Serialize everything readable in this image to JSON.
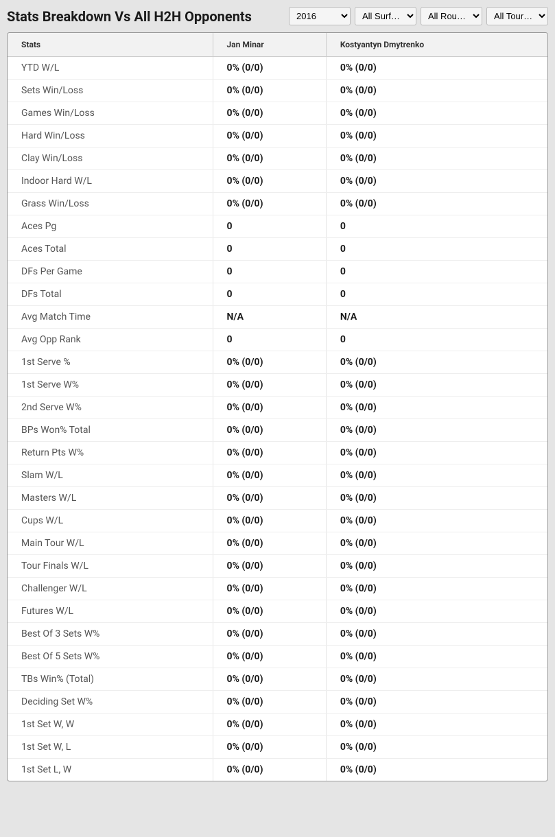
{
  "title": "Stats Breakdown Vs All H2H Opponents",
  "filters": {
    "year": {
      "selected": "2016",
      "options": [
        "2016"
      ]
    },
    "surface": {
      "selected": "All Surf…",
      "options": [
        "All Surf…"
      ]
    },
    "round": {
      "selected": "All Rou…",
      "options": [
        "All Rou…"
      ]
    },
    "tournament": {
      "selected": "All Tour…",
      "options": [
        "All Tour…"
      ]
    }
  },
  "table": {
    "columns": [
      "Stats",
      "Jan Minar",
      "Kostyantyn Dmytrenko"
    ],
    "rows": [
      [
        "YTD W/L",
        "0% (0/0)",
        "0% (0/0)"
      ],
      [
        "Sets Win/Loss",
        "0% (0/0)",
        "0% (0/0)"
      ],
      [
        "Games Win/Loss",
        "0% (0/0)",
        "0% (0/0)"
      ],
      [
        "Hard Win/Loss",
        "0% (0/0)",
        "0% (0/0)"
      ],
      [
        "Clay Win/Loss",
        "0% (0/0)",
        "0% (0/0)"
      ],
      [
        "Indoor Hard W/L",
        "0% (0/0)",
        "0% (0/0)"
      ],
      [
        "Grass Win/Loss",
        "0% (0/0)",
        "0% (0/0)"
      ],
      [
        "Aces Pg",
        "0",
        "0"
      ],
      [
        "Aces Total",
        "0",
        "0"
      ],
      [
        "DFs Per Game",
        "0",
        "0"
      ],
      [
        "DFs Total",
        "0",
        "0"
      ],
      [
        "Avg Match Time",
        "N/A",
        "N/A"
      ],
      [
        "Avg Opp Rank",
        "0",
        "0"
      ],
      [
        "1st Serve %",
        "0% (0/0)",
        "0% (0/0)"
      ],
      [
        "1st Serve W%",
        "0% (0/0)",
        "0% (0/0)"
      ],
      [
        "2nd Serve W%",
        "0% (0/0)",
        "0% (0/0)"
      ],
      [
        "BPs Won% Total",
        "0% (0/0)",
        "0% (0/0)"
      ],
      [
        "Return Pts W%",
        "0% (0/0)",
        "0% (0/0)"
      ],
      [
        "Slam W/L",
        "0% (0/0)",
        "0% (0/0)"
      ],
      [
        "Masters W/L",
        "0% (0/0)",
        "0% (0/0)"
      ],
      [
        "Cups W/L",
        "0% (0/0)",
        "0% (0/0)"
      ],
      [
        "Main Tour W/L",
        "0% (0/0)",
        "0% (0/0)"
      ],
      [
        "Tour Finals W/L",
        "0% (0/0)",
        "0% (0/0)"
      ],
      [
        "Challenger W/L",
        "0% (0/0)",
        "0% (0/0)"
      ],
      [
        "Futures W/L",
        "0% (0/0)",
        "0% (0/0)"
      ],
      [
        "Best Of 3 Sets W%",
        "0% (0/0)",
        "0% (0/0)"
      ],
      [
        "Best Of 5 Sets W%",
        "0% (0/0)",
        "0% (0/0)"
      ],
      [
        "TBs Win% (Total)",
        "0% (0/0)",
        "0% (0/0)"
      ],
      [
        "Deciding Set W%",
        "0% (0/0)",
        "0% (0/0)"
      ],
      [
        "1st Set W, W",
        "0% (0/0)",
        "0% (0/0)"
      ],
      [
        "1st Set W, L",
        "0% (0/0)",
        "0% (0/0)"
      ],
      [
        "1st Set L, W",
        "0% (0/0)",
        "0% (0/0)"
      ]
    ]
  }
}
